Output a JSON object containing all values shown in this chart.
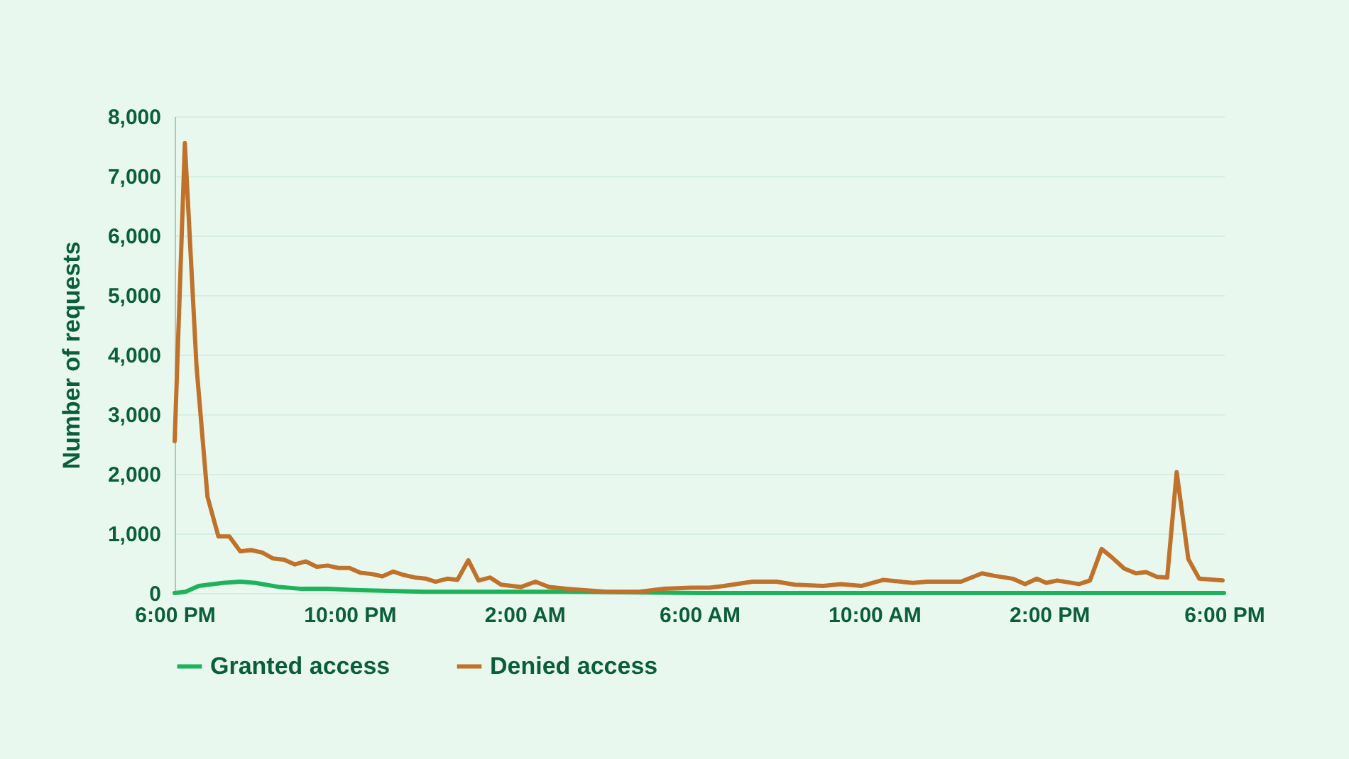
{
  "chart_data": {
    "type": "line",
    "ylabel": "Number of requests",
    "xlim": [
      "--01-01T18:00",
      "--01-02T18:00"
    ],
    "xticks": [
      {
        "value": "--01-01T18:00",
        "label": "6:00 PM"
      },
      {
        "value": "--01-01T22:00",
        "label": "10:00 PM"
      },
      {
        "value": "--01-02T02:00",
        "label": "2:00 AM"
      },
      {
        "value": "--01-02T06:00",
        "label": "6:00 AM"
      },
      {
        "value": "--01-02T10:00",
        "label": "10:00 AM"
      },
      {
        "value": "--01-02T14:00",
        "label": "2:00 PM"
      },
      {
        "value": "--01-02T18:00",
        "label": "6:00 PM"
      }
    ],
    "ylim": [
      0,
      8000
    ],
    "yticks": [
      {
        "value": 0,
        "label": "0"
      },
      {
        "value": 1000,
        "label": "1,000"
      },
      {
        "value": 2000,
        "label": "2,000"
      },
      {
        "value": 3000,
        "label": "3,000"
      },
      {
        "value": 4000,
        "label": "4,000"
      },
      {
        "value": 5000,
        "label": "5,000"
      },
      {
        "value": 6000,
        "label": "6,000"
      },
      {
        "value": 7000,
        "label": "7,000"
      },
      {
        "value": 8000,
        "label": "8,000"
      }
    ],
    "grid": "y",
    "legend": "bottom",
    "marker": "none",
    "line_style": "solid",
    "series": [
      {
        "name": "Granted access",
        "color": "#1db35a",
        "x": [
          "--01-01T18:00",
          "--01-01T18:15",
          "--01-01T18:33",
          "--01-01T19:06",
          "--01-01T19:30",
          "--01-01T19:51",
          "--01-01T20:24",
          "--01-01T20:54",
          "--01-01T21:30",
          "--01-01T22:06",
          "--01-01T23:42",
          "--01-02T03:00",
          "--01-02T06:00",
          "--01-02T10:00",
          "--01-02T14:00",
          "--01-02T18:00"
        ],
        "values": [
          0,
          20,
          120,
          170,
          190,
          170,
          100,
          70,
          70,
          50,
          20,
          20,
          0,
          0,
          0,
          0
        ]
      },
      {
        "name": "Denied access",
        "color": "#c0712a",
        "x": [
          "--01-01T18:00",
          "--01-01T18:14",
          "--01-01T18:30",
          "--01-01T18:45",
          "--01-01T19:00",
          "--01-01T19:15",
          "--01-01T19:30",
          "--01-01T19:45",
          "--01-01T20:00",
          "--01-01T20:15",
          "--01-01T20:30",
          "--01-01T20:45",
          "--01-01T21:00",
          "--01-01T21:15",
          "--01-01T21:30",
          "--01-01T21:45",
          "--01-01T22:00",
          "--01-01T22:15",
          "--01-01T22:30",
          "--01-01T22:45",
          "--01-01T23:00",
          "--01-01T23:15",
          "--01-01T23:30",
          "--01-01T23:45",
          "--01-01T23:58",
          "--01-02T00:14",
          "--01-02T00:28",
          "--01-02T00:43",
          "--01-02T00:57",
          "--01-02T01:13",
          "--01-02T01:28",
          "--01-02T01:55",
          "--01-02T02:15",
          "--01-02T02:34",
          "--01-02T03:00",
          "--01-02T03:52",
          "--01-02T04:37",
          "--01-02T05:10",
          "--01-02T05:49",
          "--01-02T06:14",
          "--01-02T06:34",
          "--01-02T07:13",
          "--01-02T07:46",
          "--01-02T08:11",
          "--01-02T08:50",
          "--01-02T09:14",
          "--01-02T09:43",
          "--01-02T10:12",
          "--01-02T10:53",
          "--01-02T11:13",
          "--01-02T11:59",
          "--01-02T12:28",
          "--01-02T12:44",
          "--01-02T13:10",
          "--01-02T13:27",
          "--01-02T13:43",
          "--01-02T13:56",
          "--01-02T14:11",
          "--01-02T14:41",
          "--01-02T14:56",
          "--01-02T15:12",
          "--01-02T15:26",
          "--01-02T15:43",
          "--01-02T15:59",
          "--01-02T16:13",
          "--01-02T16:28",
          "--01-02T16:42",
          "--01-02T16:55",
          "--01-02T17:11",
          "--01-02T17:26",
          "--01-02T17:58"
        ],
        "values": [
          2550,
          7550,
          3800,
          1620,
          950,
          950,
          700,
          720,
          680,
          580,
          560,
          480,
          530,
          440,
          460,
          420,
          420,
          340,
          320,
          280,
          360,
          300,
          260,
          240,
          190,
          240,
          220,
          550,
          210,
          260,
          140,
          100,
          190,
          100,
          70,
          20,
          20,
          70,
          90,
          90,
          120,
          190,
          190,
          140,
          120,
          150,
          120,
          220,
          170,
          190,
          190,
          330,
          290,
          240,
          150,
          240,
          170,
          210,
          150,
          210,
          740,
          600,
          410,
          330,
          350,
          270,
          260,
          2030,
          570,
          240,
          210
        ]
      }
    ]
  }
}
